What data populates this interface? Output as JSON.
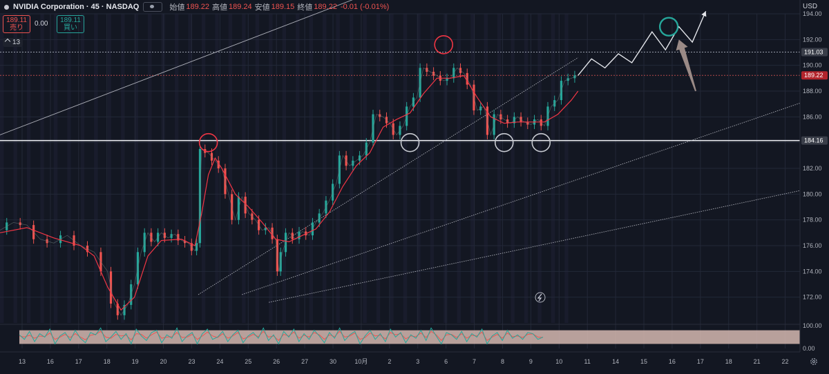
{
  "header": {
    "title": "NVIDIA Corporation · 45 · NASDAQ",
    "open_label": "始値",
    "open_value": "189.22",
    "high_label": "高値",
    "high_value": "189.24",
    "low_label": "安値",
    "low_value": "189.15",
    "close_label": "終値",
    "close_value": "189.22",
    "change": "-0.01 (-0.01%)"
  },
  "quote": {
    "sell_price": "189.11",
    "sell_label": "売り",
    "spread": "0.00",
    "buy_price": "189.11",
    "buy_label": "買い"
  },
  "indicator_count": "13",
  "currency": "USD",
  "colors": {
    "background": "#131722",
    "up": "#26a69a",
    "down": "#ef5350",
    "ma": "#f23645",
    "stoch_band": "#d6b8b0",
    "circle_red": "#f23645",
    "circle_white": "#c8cbd2",
    "circle_green": "#26a69a",
    "arrow": "#9a8a86"
  },
  "chart_data": {
    "type": "line",
    "price_axis": {
      "min": 170,
      "max": 194,
      "ticks": [
        "194.00",
        "192.00",
        "190.00",
        "188.00",
        "186.00",
        "184.00",
        "182.00",
        "180.00",
        "178.00",
        "176.00",
        "174.00",
        "172.00"
      ]
    },
    "price_labels": [
      {
        "value": 191.03,
        "text": "191.03",
        "style": "gray"
      },
      {
        "value": 189.22,
        "text": "189.22",
        "style": "red"
      },
      {
        "value": 184.16,
        "text": "184.16",
        "style": "gray"
      }
    ],
    "x_labels": [
      "13",
      "16",
      "17",
      "18",
      "19",
      "20",
      "23",
      "24",
      "25",
      "26",
      "27",
      "30",
      "10月",
      "2",
      "3",
      "6",
      "7",
      "8",
      "9",
      "10",
      "11",
      "14",
      "15",
      "16",
      "17",
      "18",
      "21",
      "22"
    ],
    "price_path": [
      [
        0,
        177.2
      ],
      [
        2,
        177.8
      ],
      [
        4,
        177.6
      ],
      [
        6,
        176.5
      ],
      [
        8,
        176.2
      ],
      [
        10,
        176.8
      ],
      [
        12,
        176.0
      ],
      [
        14,
        175.5
      ],
      [
        16,
        174.0
      ],
      [
        17,
        171.5
      ],
      [
        18,
        170.6
      ],
      [
        19,
        171.4
      ],
      [
        20,
        173.0
      ],
      [
        21,
        175.5
      ],
      [
        22,
        177.0
      ],
      [
        23,
        176.3
      ],
      [
        24,
        177.0
      ],
      [
        25,
        176.6
      ],
      [
        26,
        176.9
      ],
      [
        27,
        176.4
      ],
      [
        28,
        176.2
      ],
      [
        29,
        175.6
      ],
      [
        29.5,
        176.2
      ],
      [
        30,
        183.5
      ],
      [
        31,
        183.2
      ],
      [
        32,
        182.6
      ],
      [
        33,
        182.0
      ],
      [
        34,
        180.0
      ],
      [
        35,
        178.0
      ],
      [
        36,
        179.8
      ],
      [
        37,
        178.5
      ],
      [
        38,
        178.0
      ],
      [
        39,
        177.2
      ],
      [
        40,
        177.4
      ],
      [
        41,
        176.5
      ],
      [
        41.5,
        174.0
      ],
      [
        42,
        175.5
      ],
      [
        43,
        177.0
      ],
      [
        44,
        176.5
      ],
      [
        45,
        177.1
      ],
      [
        46,
        176.8
      ],
      [
        47,
        177.8
      ],
      [
        48,
        178.5
      ],
      [
        49,
        179.5
      ],
      [
        50,
        180.8
      ],
      [
        51,
        183.0
      ],
      [
        52,
        182.2
      ],
      [
        53,
        182.6
      ],
      [
        54,
        183.0
      ],
      [
        55,
        184.0
      ],
      [
        56,
        186.2
      ],
      [
        57,
        186.0
      ],
      [
        58,
        185.5
      ],
      [
        59,
        184.6
      ],
      [
        60,
        185.3
      ],
      [
        61,
        186.8
      ],
      [
        62,
        187.5
      ],
      [
        63,
        189.8
      ],
      [
        64,
        189.5
      ],
      [
        65,
        189.2
      ],
      [
        66,
        188.8
      ],
      [
        67,
        189.0
      ],
      [
        68,
        189.8
      ],
      [
        69,
        189.4
      ],
      [
        70,
        188.5
      ],
      [
        71,
        186.5
      ],
      [
        72,
        186.8
      ],
      [
        73,
        184.6
      ],
      [
        74,
        186.2
      ],
      [
        75,
        185.8
      ],
      [
        76,
        185.5
      ],
      [
        77,
        186.0
      ],
      [
        78,
        185.6
      ],
      [
        79,
        185.4
      ],
      [
        80,
        185.8
      ],
      [
        81,
        185.3
      ],
      [
        82,
        186.8
      ],
      [
        83,
        187.3
      ],
      [
        84,
        188.8
      ],
      [
        85,
        189.0
      ],
      [
        86,
        189.22
      ]
    ],
    "ma_path": [
      [
        0,
        177.0
      ],
      [
        4,
        177.4
      ],
      [
        8,
        176.6
      ],
      [
        12,
        176.0
      ],
      [
        14,
        175.2
      ],
      [
        16,
        172.8
      ],
      [
        18,
        171.0
      ],
      [
        20,
        172.0
      ],
      [
        22,
        175.2
      ],
      [
        24,
        176.4
      ],
      [
        27,
        176.5
      ],
      [
        29,
        176.0
      ],
      [
        30,
        178.5
      ],
      [
        31,
        181.5
      ],
      [
        32,
        182.8
      ],
      [
        33,
        182.0
      ],
      [
        35,
        180.0
      ],
      [
        37,
        179.0
      ],
      [
        39,
        177.8
      ],
      [
        41,
        176.5
      ],
      [
        43,
        176.3
      ],
      [
        45,
        176.8
      ],
      [
        47,
        177.3
      ],
      [
        49,
        178.6
      ],
      [
        51,
        180.6
      ],
      [
        53,
        182.2
      ],
      [
        55,
        183.2
      ],
      [
        57,
        185.2
      ],
      [
        59,
        185.8
      ],
      [
        61,
        186.3
      ],
      [
        63,
        187.8
      ],
      [
        65,
        189.0
      ],
      [
        67,
        189.0
      ],
      [
        69,
        189.2
      ],
      [
        71,
        187.5
      ],
      [
        73,
        186.0
      ],
      [
        75,
        185.5
      ],
      [
        77,
        185.6
      ],
      [
        79,
        185.6
      ],
      [
        81,
        185.6
      ],
      [
        83,
        186.2
      ],
      [
        85,
        187.3
      ],
      [
        86,
        188.0
      ]
    ],
    "horizontal_lines": [
      191.03,
      189.22,
      184.16
    ],
    "trendlines": [
      {
        "from": [
          0,
          184.6
        ],
        "to": [
          70,
          198.6
        ]
      },
      {
        "from": [
          29.5,
          172.2
        ],
        "to": [
          86,
          190.6
        ]
      },
      {
        "from": [
          36,
          172.2
        ],
        "to": [
          122,
          187.6
        ]
      },
      {
        "from": [
          40,
          171.6
        ],
        "to": [
          122,
          180.6
        ]
      }
    ],
    "scenario_path": [
      [
        86,
        189.22
      ],
      [
        88,
        190.5
      ],
      [
        90,
        189.8
      ],
      [
        92,
        190.9
      ],
      [
        94,
        190.2
      ],
      [
        97,
        192.6
      ],
      [
        99,
        191.2
      ],
      [
        101,
        193.0
      ],
      [
        103,
        191.8
      ],
      [
        105,
        194.2
      ]
    ],
    "circles": [
      {
        "at": [
          31,
          184.0
        ],
        "color": "red"
      },
      {
        "at": [
          66,
          191.6
        ],
        "color": "red"
      },
      {
        "at": [
          61,
          184.0
        ],
        "color": "white"
      },
      {
        "at": [
          75,
          184.0
        ],
        "color": "white"
      },
      {
        "at": [
          80.5,
          184.0
        ],
        "color": "white"
      },
      {
        "at": [
          99.5,
          193.0
        ],
        "color": "green"
      }
    ],
    "arrow": {
      "from": [
        103.5,
        188.0
      ],
      "to": [
        101.0,
        192.0
      ]
    },
    "stochastic": {
      "type": "line",
      "ylim": [
        0,
        100
      ],
      "ticks": [
        "100.00",
        "0.00"
      ],
      "band": [
        20,
        80
      ],
      "k": [
        60,
        40,
        75,
        30,
        65,
        50,
        85,
        20,
        55,
        70,
        35,
        80,
        45,
        25,
        70,
        60,
        90,
        30,
        50,
        75,
        40,
        65,
        20,
        85,
        55,
        35,
        70,
        80,
        25,
        60,
        45,
        90,
        30,
        55,
        70,
        20,
        65,
        85,
        40,
        50,
        75,
        30,
        60,
        80,
        25,
        55,
        70,
        45,
        90,
        35,
        60,
        20,
        75,
        50,
        85,
        30,
        65,
        40,
        80,
        55,
        25,
        70,
        45,
        90,
        35,
        60,
        75,
        20,
        55,
        80,
        40,
        65,
        30,
        85,
        50,
        70,
        25,
        60,
        45,
        80,
        35,
        90,
        55,
        20,
        70,
        60,
        40,
        75,
        30,
        65,
        50,
        85,
        20,
        55,
        70,
        35,
        80,
        45,
        60,
        40,
        70,
        65,
        40,
        50
      ],
      "d": [
        55,
        50,
        58,
        45,
        55,
        52,
        68,
        40,
        50,
        62,
        48,
        65,
        50,
        38,
        58,
        62,
        75,
        50,
        45,
        62,
        55,
        58,
        38,
        65,
        62,
        45,
        60,
        72,
        45,
        50,
        52,
        70,
        48,
        50,
        62,
        40,
        55,
        72,
        55,
        48,
        65,
        45,
        55,
        70,
        42,
        50,
        62,
        52,
        75,
        50,
        55,
        35,
        62,
        55,
        72,
        45,
        58,
        50,
        70,
        60,
        40,
        60,
        52,
        75,
        50,
        55,
        68,
        40,
        48,
        68,
        55,
        58,
        42,
        70,
        60,
        65,
        42,
        55,
        52,
        68,
        48,
        75,
        60,
        35,
        60,
        62,
        48,
        65,
        45,
        58,
        55,
        72,
        35,
        50,
        62,
        45,
        68,
        52,
        55,
        48,
        62,
        64,
        50,
        48
      ]
    }
  }
}
